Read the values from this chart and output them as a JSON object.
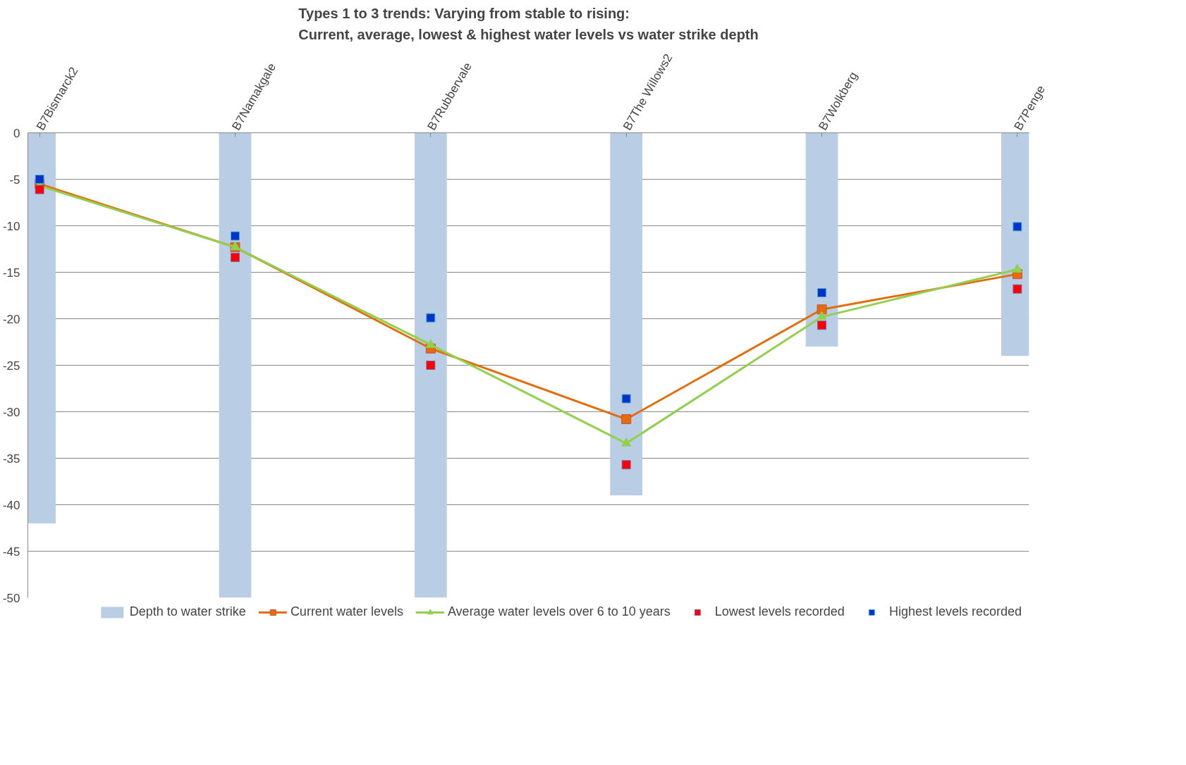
{
  "chart_data": {
    "type": "bar",
    "title": "Types 1 to  3 trends: Varying from stable to rising:\nCurrent, average, lowest & highest water levels vs water strike depth",
    "categories": [
      "B7Bismarck2",
      "B7Namakgale",
      "B7Rubbervale",
      "B7The Willows2",
      "B7Wolkberg",
      "B7Penge"
    ],
    "series": [
      {
        "name": "Depth to water strike",
        "color": "#b9cde5",
        "values": [
          -42,
          -50,
          -50,
          -39,
          -23,
          -24
        ]
      },
      {
        "name": "Current water levels",
        "type": "line",
        "marker": "square",
        "color": "#e46c0a",
        "values": [
          -5.5,
          -12.3,
          -23.2,
          -30.8,
          -19.0,
          -15.2
        ]
      },
      {
        "name": "Average water levels over 6 to 10 years",
        "type": "line",
        "marker": "triangle",
        "color": "#92d050",
        "values": [
          -5.7,
          -12.3,
          -22.8,
          -33.4,
          -19.8,
          -14.7
        ]
      },
      {
        "name": "Lowest levels recorded",
        "type": "scatter",
        "marker": "square",
        "color": "#ff0000",
        "values": [
          -6.1,
          -13.4,
          -25.0,
          -35.7,
          -20.7,
          -16.8
        ]
      },
      {
        "name": "Highest levels recorded",
        "type": "scatter",
        "marker": "square",
        "color": "#0033cc",
        "values": [
          -5.0,
          -11.1,
          -19.9,
          -28.6,
          -17.2,
          -10.1
        ]
      }
    ],
    "ylim": [
      -50,
      0
    ],
    "yticks": [
      -50,
      -45,
      -40,
      -35,
      -30,
      -25,
      -20,
      -15,
      -10,
      -5,
      0
    ],
    "grid": "y",
    "legend": "bottom",
    "line_style": "solid"
  }
}
